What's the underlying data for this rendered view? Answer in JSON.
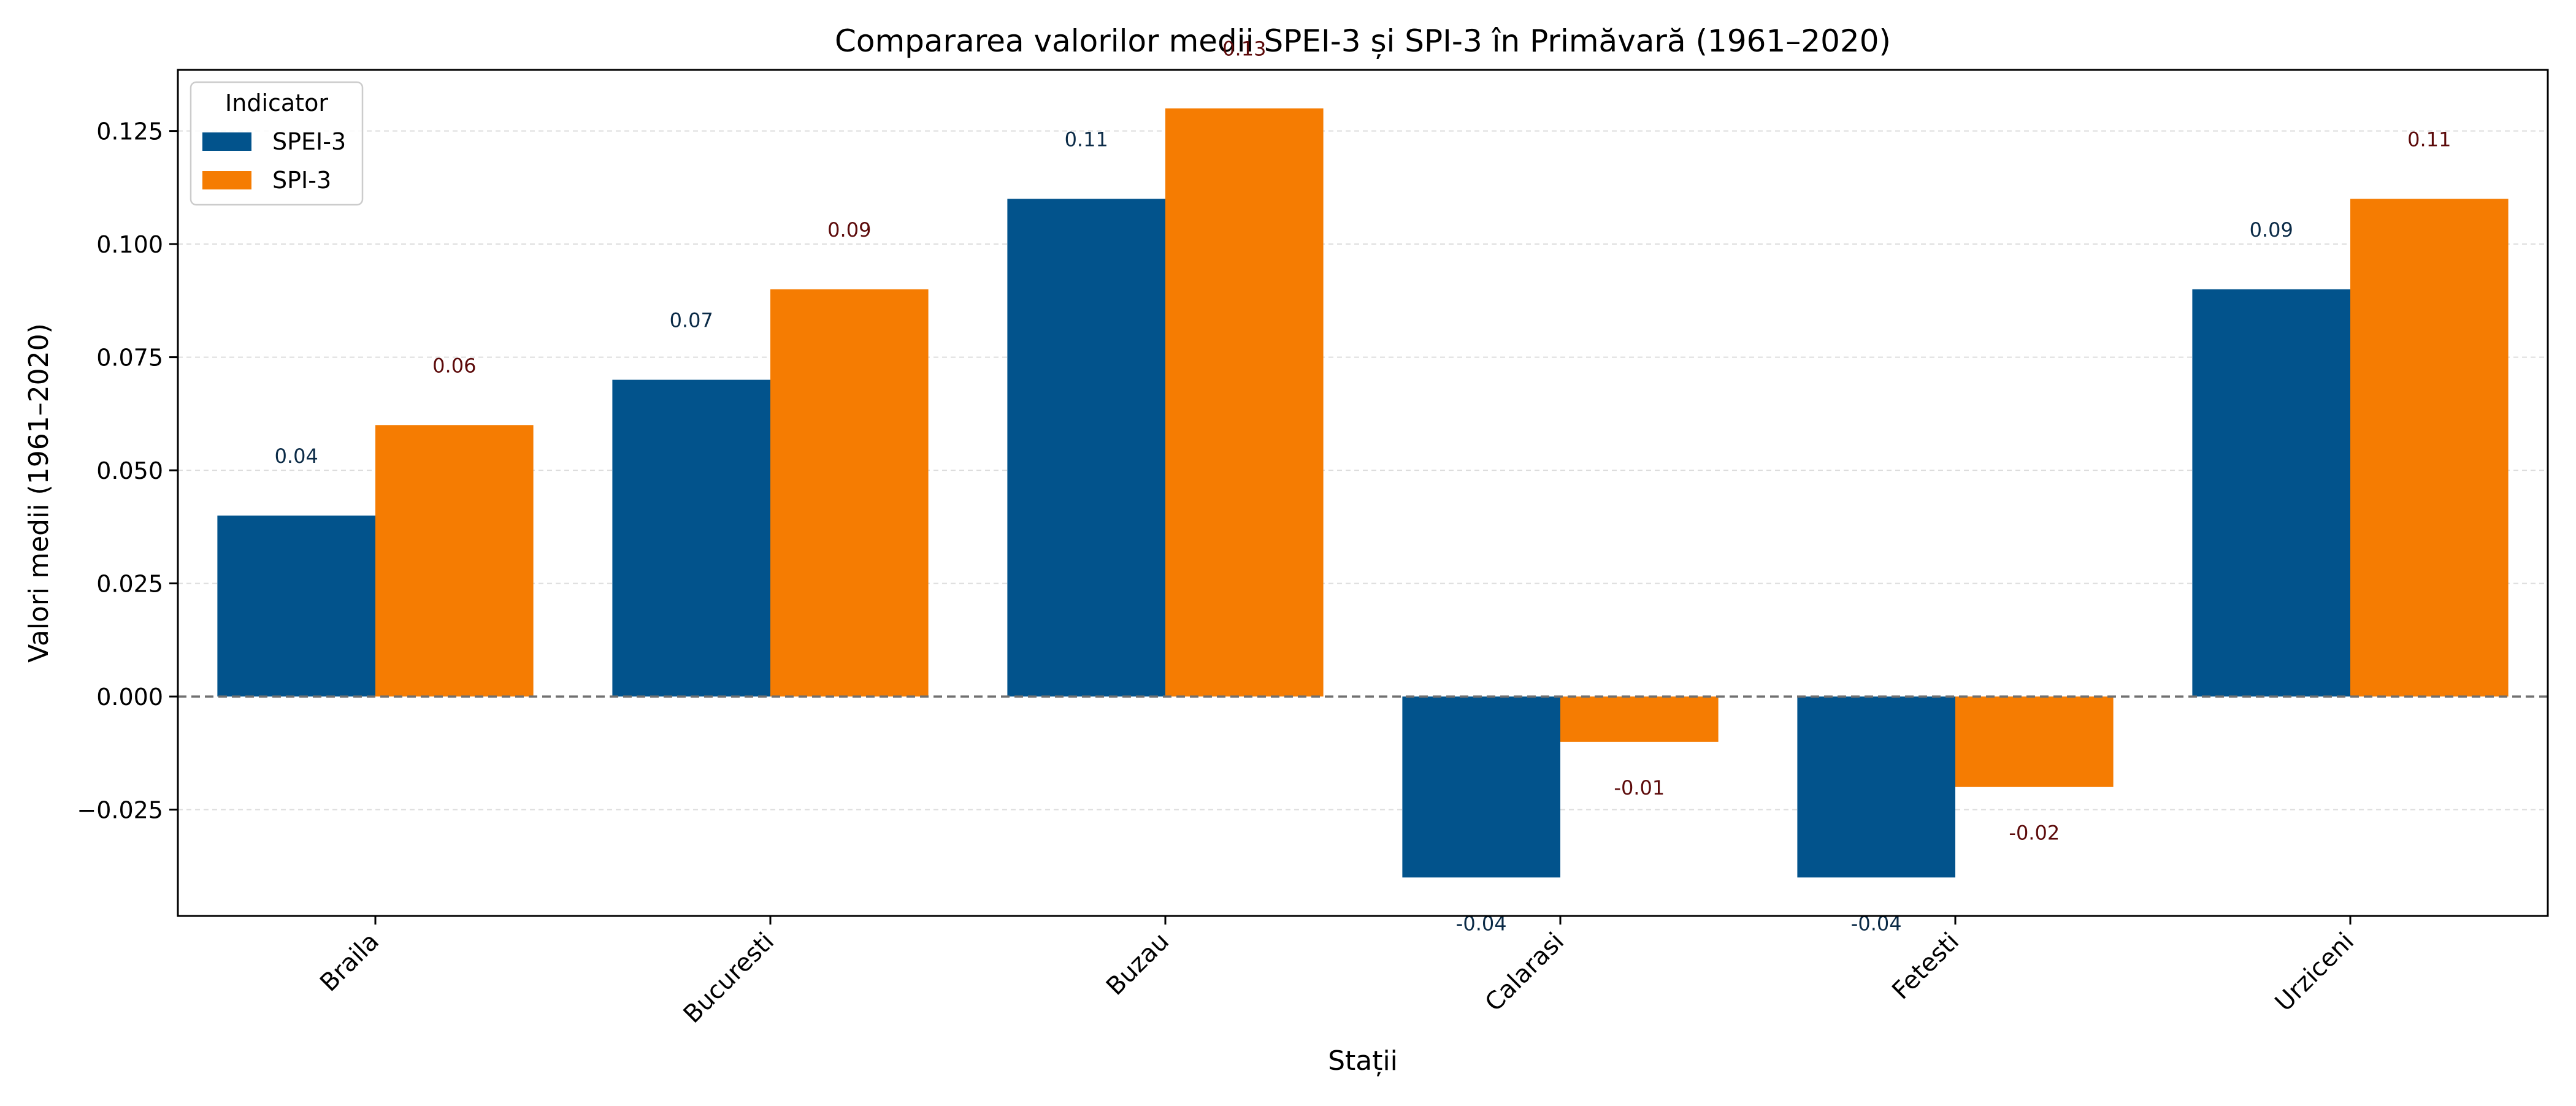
{
  "chart_data": {
    "type": "bar",
    "title": "Compararea valorilor medii SPEI-3 și SPI-3 în Primăvară (1961–2020)",
    "xlabel": "Stații",
    "ylabel": "Valori medii (1961–2020)",
    "categories": [
      "Braila",
      "Bucuresti",
      "Buzau",
      "Calarasi",
      "Fetesti",
      "Urziceni"
    ],
    "series": [
      {
        "name": "SPEI-3",
        "color": "#02538c",
        "label_color": "#0b2b47",
        "values": [
          0.04,
          0.07,
          0.11,
          -0.04,
          -0.04,
          0.09
        ]
      },
      {
        "name": "SPI-3",
        "color": "#f57c02",
        "label_color": "#5c0a0a",
        "values": [
          0.06,
          0.09,
          0.13,
          -0.01,
          -0.02,
          0.11
        ]
      }
    ],
    "ylim": [
      -0.0485,
      0.1385
    ],
    "yticks": [
      -0.025,
      0.0,
      0.025,
      0.05,
      0.075,
      0.1,
      0.125
    ],
    "ytick_labels": [
      "−0.025",
      "0.000",
      "0.025",
      "0.050",
      "0.075",
      "0.100",
      "0.125"
    ],
    "data_labels": [
      [
        "0.04",
        "0.07",
        "0.11",
        "-0.04",
        "-0.04",
        "0.09"
      ],
      [
        "0.06",
        "0.09",
        "0.13",
        "-0.01",
        "-0.02",
        "0.11"
      ]
    ],
    "legend": {
      "title": "Indicator",
      "position": "top-left"
    },
    "grid": {
      "y": true,
      "style": "dashed"
    },
    "zero_line": {
      "style": "dashed"
    }
  }
}
